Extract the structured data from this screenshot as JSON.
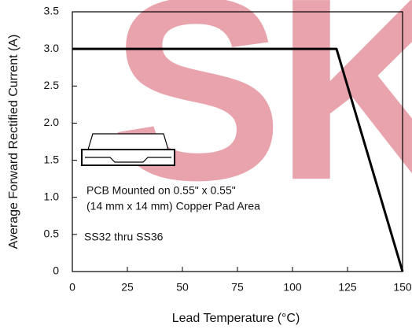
{
  "chart_data": {
    "type": "line",
    "watermark": "SK",
    "x_label": "Lead Temperature (°C)",
    "y_label": "Average Forward Rectified Current (A)",
    "annotations": [
      "PCB Mounted on 0.55\" x 0.55\"",
      "(14 mm x 14 mm) Copper Pad Area",
      "SS32 thru SS36"
    ],
    "x": [
      0,
      120,
      150
    ],
    "series": [
      {
        "color": "#000000",
        "values": [
          3,
          3,
          0
        ]
      }
    ],
    "xlim": [
      0,
      150
    ],
    "xticks": [
      0,
      25,
      50,
      75,
      100,
      125,
      150
    ],
    "ylim": [
      0,
      3.5
    ],
    "yticks": [
      0,
      0.5,
      {
        "value": 1,
        "label": "1.0"
      },
      1.5,
      {
        "value": 2,
        "label": "2.0"
      },
      2.5,
      {
        "value": 3,
        "label": "3.0"
      },
      3.5
    ],
    "grid": false
  }
}
